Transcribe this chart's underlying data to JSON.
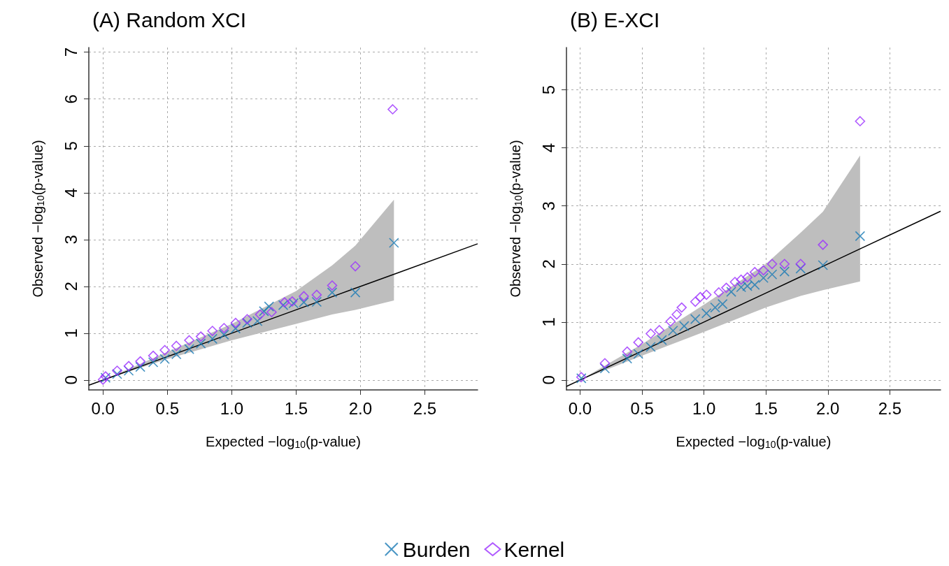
{
  "chart_data": [
    {
      "type": "scatter",
      "title": "(A) Random XCI",
      "xlabel": "Expected −log$_{10}$(p-value)",
      "ylabel": "Observed −log$_{10}$(p-value)",
      "xlim": [
        -0.11,
        2.91
      ],
      "ylim": [
        -0.21,
        7.1
      ],
      "xticks": [
        {
          "value": 0,
          "label": "0.0"
        },
        {
          "value": 0.5,
          "label": "0.5"
        },
        {
          "value": 1,
          "label": "1.0"
        },
        {
          "value": 1.5,
          "label": "1.5"
        },
        {
          "value": 2,
          "label": "2.0"
        },
        {
          "value": 2.5,
          "label": "2.5"
        }
      ],
      "yticks": [
        0,
        1,
        2,
        3,
        4,
        5,
        6,
        7
      ],
      "grid": true,
      "legend": "bottom",
      "series": [
        {
          "name": "Burden",
          "color": "#1a7ab5",
          "marker": "cross",
          "x": [
            2.26,
            1.96,
            1.78,
            1.66,
            1.56,
            1.48,
            1.4,
            1.29,
            1.25,
            1.2,
            1.12,
            1.03,
            0.94,
            0.85,
            0.76,
            0.67,
            0.57,
            0.48,
            0.39,
            0.29,
            0.2,
            0.11,
            0.02
          ],
          "values": [
            2.93,
            1.87,
            1.87,
            1.67,
            1.66,
            1.64,
            1.6,
            1.57,
            1.47,
            1.26,
            1.22,
            1.1,
            0.97,
            0.88,
            0.78,
            0.66,
            0.55,
            0.45,
            0.38,
            0.28,
            0.2,
            0.13,
            0.05
          ]
        },
        {
          "name": "Kernel",
          "color": "#9b30ff",
          "marker": "diamond",
          "x": [
            2.25,
            1.96,
            1.78,
            1.66,
            1.56,
            1.47,
            1.41,
            1.31,
            1.22,
            1.12,
            1.03,
            0.94,
            0.85,
            0.76,
            0.67,
            0.57,
            0.48,
            0.39,
            0.29,
            0.2,
            0.11,
            0.02,
            0.0
          ],
          "values": [
            5.78,
            2.43,
            2.02,
            1.82,
            1.79,
            1.68,
            1.66,
            1.45,
            1.4,
            1.3,
            1.22,
            1.11,
            1.05,
            0.93,
            0.85,
            0.73,
            0.64,
            0.52,
            0.4,
            0.3,
            0.2,
            0.08,
            0.01
          ]
        },
        {
          "type": "line",
          "color": "#000000",
          "marker": "none",
          "x": [
            -0.11,
            0,
            0.5,
            1,
            1.5,
            1.78,
            1.96,
            2.26,
            2.91
          ],
          "values": [
            -0.11,
            0,
            0.5,
            1,
            1.5,
            1.78,
            1.96,
            2.26,
            2.91
          ],
          "lower": [
            null,
            0,
            0.45,
            0.85,
            1.2,
            1.4,
            1.5,
            1.7,
            null
          ],
          "upper": [
            null,
            0,
            0.6,
            1.2,
            1.9,
            2.45,
            2.87,
            3.85,
            null
          ]
        }
      ]
    },
    {
      "type": "scatter",
      "title": "(B) E-XCI",
      "xlabel": "Expected −log$_{10}$(p-value)",
      "ylabel": "Observed −log$_{10}$(p-value)",
      "xlim": [
        -0.11,
        2.91
      ],
      "ylim": [
        -0.17,
        5.73
      ],
      "xticks": [
        {
          "value": 0,
          "label": "0.0"
        },
        {
          "value": 0.5,
          "label": "0.5"
        },
        {
          "value": 1,
          "label": "1.0"
        },
        {
          "value": 1.5,
          "label": "1.5"
        },
        {
          "value": 2,
          "label": "2.0"
        },
        {
          "value": 2.5,
          "label": "2.5"
        }
      ],
      "yticks": [
        0,
        1,
        2,
        3,
        4,
        5
      ],
      "grid": true,
      "legend": "bottom",
      "series": [
        {
          "name": "Burden",
          "color": "#1a7ab5",
          "marker": "cross",
          "x": [
            2.26,
            1.96,
            1.78,
            1.65,
            1.55,
            1.48,
            1.41,
            1.35,
            1.3,
            1.22,
            1.15,
            1.09,
            1.02,
            0.93,
            0.84,
            0.75,
            0.66,
            0.57,
            0.47,
            0.38,
            0.2,
            0.01
          ],
          "values": [
            2.48,
            1.98,
            1.92,
            1.87,
            1.82,
            1.76,
            1.64,
            1.62,
            1.6,
            1.52,
            1.31,
            1.25,
            1.15,
            1.05,
            0.93,
            0.85,
            0.69,
            0.57,
            0.45,
            0.37,
            0.2,
            0.03
          ]
        },
        {
          "name": "Kernel",
          "color": "#9b30ff",
          "marker": "diamond",
          "x": [
            2.26,
            1.96,
            1.78,
            1.65,
            1.55,
            1.48,
            1.41,
            1.35,
            1.3,
            1.25,
            1.18,
            1.12,
            1.02,
            0.97,
            0.93,
            0.82,
            0.78,
            0.73,
            0.64,
            0.57,
            0.47,
            0.38,
            0.2,
            0.01
          ],
          "values": [
            4.46,
            2.33,
            2.0,
            2.0,
            2.0,
            1.89,
            1.86,
            1.77,
            1.73,
            1.69,
            1.59,
            1.51,
            1.47,
            1.43,
            1.35,
            1.25,
            1.13,
            1.01,
            0.86,
            0.8,
            0.65,
            0.49,
            0.29,
            0.05
          ]
        },
        {
          "type": "line",
          "color": "#000000",
          "marker": "none",
          "x": [
            -0.11,
            0,
            0.5,
            1,
            1.5,
            1.78,
            1.96,
            2.26,
            2.91
          ],
          "values": [
            -0.11,
            0,
            0.5,
            1,
            1.5,
            1.78,
            1.96,
            2.26,
            2.91
          ],
          "lower": [
            null,
            0,
            0.42,
            0.83,
            1.25,
            1.45,
            1.55,
            1.7,
            null
          ],
          "upper": [
            null,
            0,
            0.62,
            1.3,
            2.0,
            2.54,
            2.9,
            3.87,
            null
          ]
        }
      ]
    }
  ]
}
